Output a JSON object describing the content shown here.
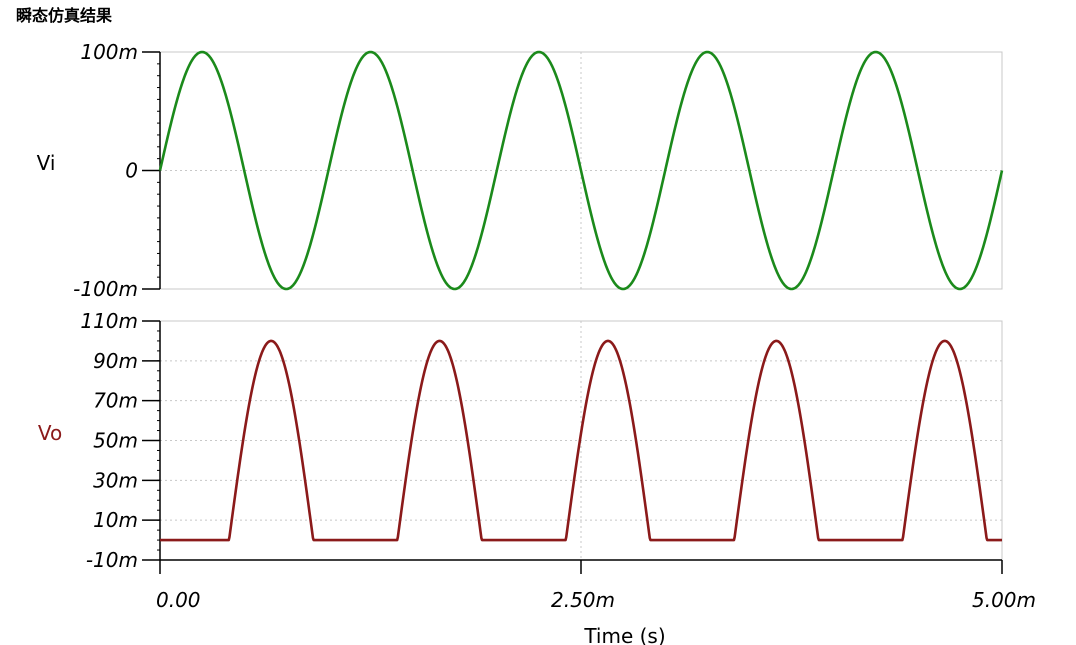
{
  "title": "瞬态仿真结果",
  "chart_data": [
    {
      "type": "line",
      "ylabel": "Vi",
      "ylabel_color": "#000000",
      "series_color": "#1b8a1b",
      "ylim": [
        -0.1,
        0.1
      ],
      "yticks": [
        {
          "value": 0.1,
          "label": "100m"
        },
        {
          "value": 0,
          "label": "0"
        },
        {
          "value": -0.1,
          "label": "-100m"
        }
      ],
      "xlim": [
        0,
        0.005
      ],
      "waveform": "sine",
      "amplitude": 0.1,
      "frequency": 1000,
      "grid": true
    },
    {
      "type": "line",
      "ylabel": "Vo",
      "ylabel_color": "#8b1a1a",
      "series_color": "#8b1a1a",
      "ylim": [
        -0.01,
        0.11
      ],
      "yticks": [
        {
          "value": 0.11,
          "label": "110m"
        },
        {
          "value": 0.09,
          "label": "90m"
        },
        {
          "value": 0.07,
          "label": "70m"
        },
        {
          "value": 0.05,
          "label": "50m"
        },
        {
          "value": 0.03,
          "label": "30m"
        },
        {
          "value": 0.01,
          "label": "10m"
        },
        {
          "value": -0.01,
          "label": "-10m"
        }
      ],
      "xlim": [
        0,
        0.005
      ],
      "waveform": "rectified-sine-with-threshold",
      "amplitude": 0.1,
      "frequency": 1000,
      "phase_shift_s": 0.00041,
      "threshold": 0.0,
      "grid": true
    }
  ],
  "xaxis": {
    "label": "Time (s)",
    "ticks": [
      {
        "value": 0,
        "label": "0.00"
      },
      {
        "value": 0.0025,
        "label": "2.50m"
      },
      {
        "value": 0.005,
        "label": "5.00m"
      }
    ]
  }
}
